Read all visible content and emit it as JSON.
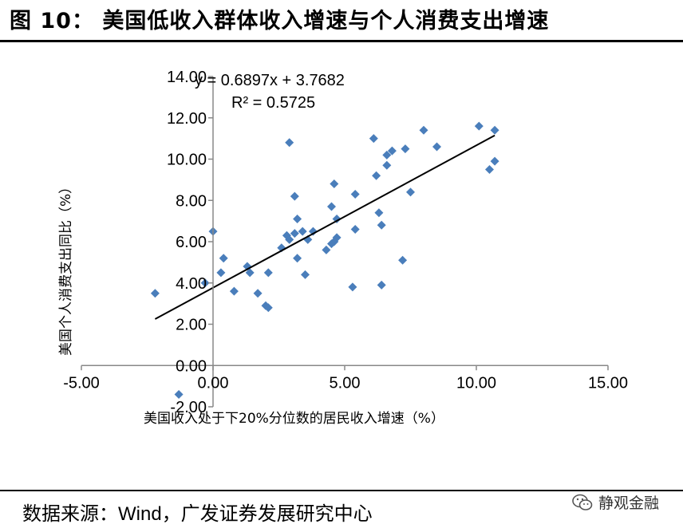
{
  "title": "图 10：  美国低收入群体收入增速与个人消费支出增速",
  "source": {
    "prefix": "数据来源：",
    "en": "Wind",
    "suffix": "，广发证券发展研究中心"
  },
  "brand": {
    "name": "静观金融",
    "icon": "wechat-icon"
  },
  "chart_data": {
    "type": "scatter",
    "xlabel": "美国收入处于下20%分位数的居民收入增速（%）",
    "ylabel": "美国个人消费支出同比（%）",
    "xlim": [
      -5,
      15
    ],
    "ylim": [
      -2,
      14
    ],
    "xticks": [
      "-5.00",
      "0.00",
      "5.00",
      "10.00",
      "15.00"
    ],
    "yticks": [
      "-2.00",
      "0.00",
      "2.00",
      "4.00",
      "6.00",
      "8.00",
      "10.00",
      "12.00",
      "14.00"
    ],
    "marker_color": "#4a7ebb",
    "trend_line": {
      "slope": 0.6897,
      "intercept": 3.7682,
      "equation": "y = 0.6897x + 3.7682",
      "r2": "R² = 0.5725"
    },
    "points": [
      [
        -2.2,
        3.5
      ],
      [
        -0.3,
        4.0
      ],
      [
        0.0,
        6.5
      ],
      [
        0.3,
        4.5
      ],
      [
        0.4,
        5.2
      ],
      [
        0.8,
        3.6
      ],
      [
        1.3,
        4.8
      ],
      [
        1.4,
        4.5
      ],
      [
        1.7,
        3.5
      ],
      [
        2.0,
        2.9
      ],
      [
        2.1,
        2.8
      ],
      [
        2.1,
        4.5
      ],
      [
        2.6,
        5.7
      ],
      [
        2.8,
        6.3
      ],
      [
        2.9,
        6.1
      ],
      [
        2.9,
        10.8
      ],
      [
        3.1,
        8.2
      ],
      [
        3.1,
        6.4
      ],
      [
        3.2,
        5.2
      ],
      [
        3.2,
        7.1
      ],
      [
        3.4,
        6.5
      ],
      [
        3.5,
        4.4
      ],
      [
        3.6,
        6.1
      ],
      [
        3.8,
        6.5
      ],
      [
        4.3,
        5.6
      ],
      [
        4.5,
        5.9
      ],
      [
        4.5,
        7.7
      ],
      [
        4.6,
        6.0
      ],
      [
        4.7,
        6.2
      ],
      [
        4.7,
        7.1
      ],
      [
        4.6,
        8.8
      ],
      [
        5.3,
        3.8
      ],
      [
        5.4,
        8.3
      ],
      [
        5.4,
        6.6
      ],
      [
        6.1,
        11.0
      ],
      [
        6.2,
        9.2
      ],
      [
        6.3,
        7.4
      ],
      [
        6.4,
        6.8
      ],
      [
        6.4,
        3.9
      ],
      [
        6.6,
        10.2
      ],
      [
        6.6,
        9.7
      ],
      [
        6.8,
        10.4
      ],
      [
        7.2,
        5.1
      ],
      [
        7.3,
        10.5
      ],
      [
        7.5,
        8.4
      ],
      [
        8.0,
        11.4
      ],
      [
        8.5,
        10.6
      ],
      [
        10.1,
        11.6
      ],
      [
        10.5,
        9.5
      ],
      [
        10.7,
        9.9
      ],
      [
        10.7,
        11.4
      ],
      [
        -1.3,
        -1.4
      ]
    ]
  }
}
